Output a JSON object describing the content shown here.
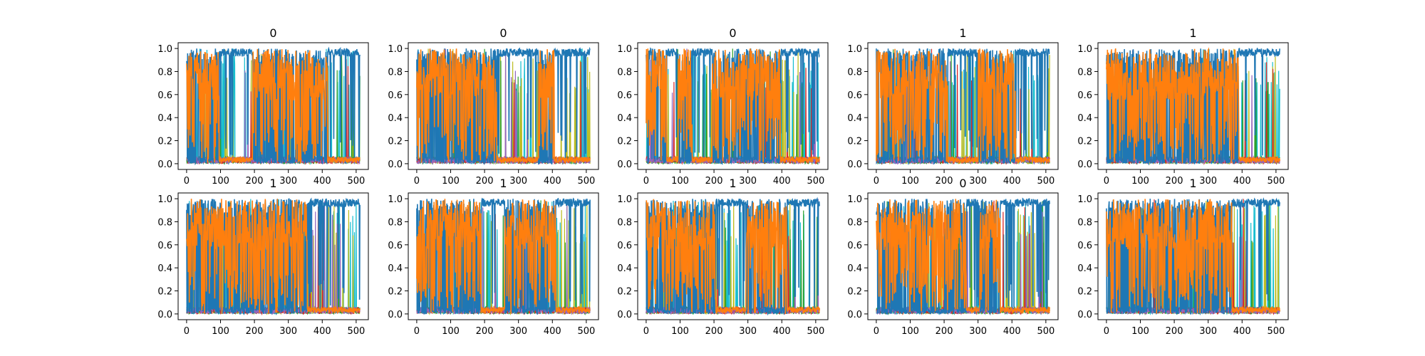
{
  "chart_data": {
    "type": "line",
    "description_note": "Grid of 10 line-plot panels (2 rows x 5 columns); each panel shows many overlapping series over x in [0, 511] with values in [0, 1].",
    "x_range": [
      0,
      511
    ],
    "xlim": [
      -25,
      536
    ],
    "ylim": [
      -0.05,
      1.05
    ],
    "x_ticks": [
      0,
      100,
      200,
      300,
      400,
      500
    ],
    "y_ticks": [
      0.0,
      0.2,
      0.4,
      0.6,
      0.8,
      1.0
    ],
    "x_tick_labels": [
      "0",
      "100",
      "200",
      "300",
      "400",
      "500"
    ],
    "y_tick_labels": [
      "0.0",
      "0.2",
      "0.4",
      "0.6",
      "0.8",
      "1.0"
    ],
    "colors": {
      "blue": "#1f77b4",
      "orange": "#ff7f0e",
      "cyan": "#17becf",
      "olive": "#bcbd22",
      "green": "#2ca02c",
      "red": "#d62728",
      "purple": "#9467bd",
      "pink": "#e377c2"
    },
    "panels": [
      {
        "title": "0",
        "orange_high_segments": [
          [
            0,
            95
          ],
          [
            195,
            415
          ]
        ],
        "seed": 11
      },
      {
        "title": "0",
        "orange_high_segments": [
          [
            0,
            235
          ],
          [
            360,
            405
          ]
        ],
        "seed": 23
      },
      {
        "title": "0",
        "orange_high_segments": [
          [
            0,
            60
          ],
          [
            95,
            135
          ],
          [
            195,
            395
          ]
        ],
        "seed": 37
      },
      {
        "title": "1",
        "orange_high_segments": [
          [
            0,
            210
          ],
          [
            300,
            410
          ]
        ],
        "seed": 41
      },
      {
        "title": "1",
        "orange_high_segments": [
          [
            0,
            390
          ]
        ],
        "seed": 53
      },
      {
        "title": "1",
        "orange_high_segments": [
          [
            0,
            355
          ]
        ],
        "seed": 67
      },
      {
        "title": "1",
        "orange_high_segments": [
          [
            0,
            190
          ],
          [
            260,
            410
          ]
        ],
        "seed": 79
      },
      {
        "title": "1",
        "orange_high_segments": [
          [
            0,
            205
          ],
          [
            295,
            415
          ]
        ],
        "seed": 83
      },
      {
        "title": "0",
        "orange_high_segments": [
          [
            0,
            265
          ],
          [
            305,
            365
          ]
        ],
        "seed": 97
      },
      {
        "title": "1",
        "orange_high_segments": [
          [
            0,
            370
          ]
        ],
        "seed": 101
      }
    ]
  }
}
